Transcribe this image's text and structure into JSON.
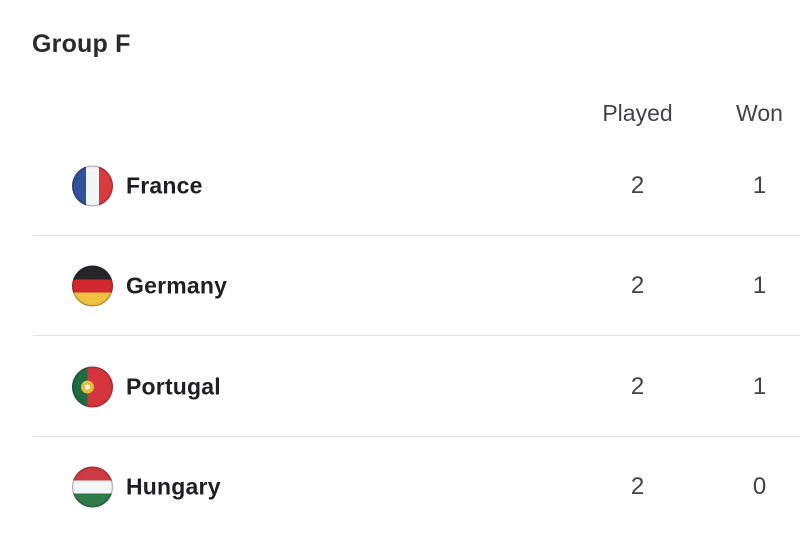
{
  "group_table": {
    "title": "Group F",
    "column_headers": {
      "played": "Played",
      "won": "Won"
    },
    "rows": [
      {
        "team": "France",
        "flag_icon": "france-flag-icon",
        "played": "2",
        "won": "1"
      },
      {
        "team": "Germany",
        "flag_icon": "germany-flag-icon",
        "played": "2",
        "won": "1"
      },
      {
        "team": "Portugal",
        "flag_icon": "portugal-flag-icon",
        "played": "2",
        "won": "1"
      },
      {
        "team": "Hungary",
        "flag_icon": "hungary-flag-icon",
        "played": "2",
        "won": "0"
      }
    ],
    "colors": {
      "background": "#ffffff",
      "title_text": "#2b2b2e",
      "header_text": "#434347",
      "team_text": "#202023",
      "value_text": "#434347",
      "divider": "#e2e2e2",
      "france_blue": "#31519e",
      "france_white": "#f4f5f7",
      "france_red": "#d93a3d",
      "germany_black": "#26262a",
      "germany_red": "#d0282e",
      "germany_gold": "#f0c240",
      "portugal_green": "#1f6b42",
      "portugal_red": "#d5353c",
      "portugal_emblem_yellow": "#e3bd3f",
      "hungary_red": "#cd3a41",
      "hungary_white": "#f4f5f7",
      "hungary_green": "#2f7a4b"
    }
  }
}
